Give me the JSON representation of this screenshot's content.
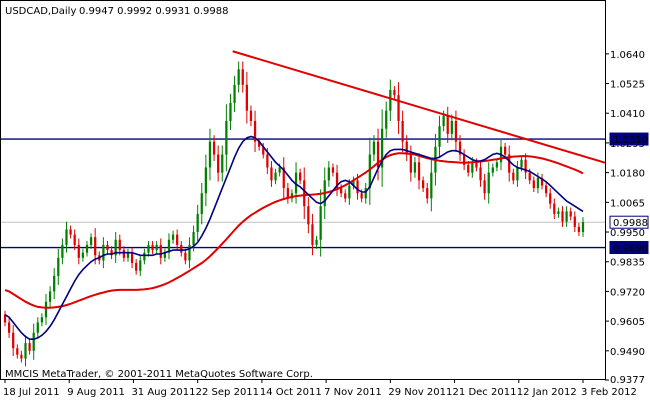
{
  "header": {
    "symbol": "USDCAD,Daily",
    "ohlc": "0.9947 0.9992 0.9931 0.9988"
  },
  "copyright": "MMCIS MetaTrader, © 2001-2011 MetaQuotes Software Corp.",
  "colors": {
    "bull_candle": "#008000",
    "bear_candle": "#e00000",
    "ma_fast": "#000080",
    "ma_slow": "#e00000",
    "trendline": "#e00000",
    "hlines": "#000080",
    "current_price_line": "#c0c0c0"
  },
  "chart_data": {
    "type": "candlestick",
    "title": "USDCAD,Daily",
    "ylim": [
      0.9377,
      1.074
    ],
    "yticks": [
      "1.0640",
      "1.0525",
      "1.0410",
      "1.0295",
      "1.0180",
      "1.0065",
      "0.9950",
      "0.9835",
      "0.9720",
      "0.9605",
      "0.9490",
      "0.9377"
    ],
    "xticks": [
      "18 Jul 2011",
      "9 Aug 2011",
      "31 Aug 2011",
      "22 Sep 2011",
      "14 Oct 2011",
      "7 Nov 2011",
      "29 Nov 2011",
      "21 Dec 2011",
      "12 Jan 2012",
      "3 Feb 2012"
    ],
    "closes": [
      0.96,
      0.956,
      0.95,
      0.9475,
      0.946,
      0.952,
      0.949,
      0.956,
      0.96,
      0.962,
      0.968,
      0.972,
      0.978,
      0.985,
      0.99,
      0.996,
      0.994,
      0.99,
      0.985,
      0.987,
      0.99,
      0.993,
      0.986,
      0.984,
      0.99,
      0.988,
      0.986,
      0.992,
      0.988,
      0.985,
      0.987,
      0.983,
      0.98,
      0.984,
      0.987,
      0.99,
      0.988,
      0.99,
      0.985,
      0.987,
      0.992,
      0.994,
      0.99,
      0.987,
      0.984,
      0.99,
      0.995,
      1.002,
      1.01,
      1.02,
      1.03,
      1.025,
      1.018,
      1.025,
      1.038,
      1.045,
      1.052,
      1.058,
      1.052,
      1.042,
      1.038,
      1.03,
      1.028,
      1.025,
      1.02,
      1.015,
      1.018,
      1.02,
      1.012,
      1.008,
      1.01,
      1.018,
      1.015,
      1.005,
      0.998,
      0.99,
      0.992,
      1.005,
      1.015,
      1.02,
      1.018,
      1.012,
      1.01,
      1.008,
      1.013,
      1.015,
      1.01,
      1.008,
      1.012,
      1.025,
      1.03,
      1.02,
      1.035,
      1.042,
      1.05,
      1.048,
      1.038,
      1.03,
      1.025,
      1.018,
      1.022,
      1.015,
      1.012,
      1.008,
      1.018,
      1.028,
      1.036,
      1.04,
      1.033,
      1.038,
      1.03,
      1.025,
      1.021,
      1.018,
      1.022,
      1.02,
      1.015,
      1.01,
      1.018,
      1.02,
      1.022,
      1.028,
      1.025,
      1.018,
      1.015,
      1.02,
      1.023,
      1.018,
      1.015,
      1.012,
      1.016,
      1.013,
      1.01,
      1.006,
      1.002,
      1.003,
      0.999,
      1.003,
      1.001,
      0.997,
      0.995,
      0.9988
    ],
    "ma_fast": [
      0.963,
      0.962,
      0.96,
      0.958,
      0.956,
      0.9545,
      0.9535,
      0.9535,
      0.954,
      0.955,
      0.9565,
      0.9585,
      0.961,
      0.964,
      0.967,
      0.97,
      0.973,
      0.976,
      0.9785,
      0.9805,
      0.982,
      0.9835,
      0.9845,
      0.985,
      0.986,
      0.9865,
      0.9865,
      0.987,
      0.987,
      0.987,
      0.987,
      0.987,
      0.9865,
      0.986,
      0.986,
      0.986,
      0.986,
      0.9865,
      0.9865,
      0.987,
      0.9875,
      0.988,
      0.988,
      0.988,
      0.988,
      0.9885,
      0.9895,
      0.991,
      0.9935,
      0.9965,
      1.0,
      1.004,
      1.008,
      1.012,
      1.016,
      1.02,
      1.024,
      1.0275,
      1.03,
      1.0315,
      1.032,
      1.0315,
      1.03,
      1.028,
      1.026,
      1.024,
      1.022,
      1.0205,
      1.019,
      1.017,
      1.015,
      1.0135,
      1.0125,
      1.011,
      1.0095,
      1.008,
      1.0065,
      1.006,
      1.007,
      1.009,
      1.011,
      1.013,
      1.0145,
      1.015,
      1.0145,
      1.013,
      1.0115,
      1.0105,
      1.0105,
      1.0125,
      1.016,
      1.0195,
      1.0225,
      1.025,
      1.0265,
      1.027,
      1.027,
      1.027,
      1.0265,
      1.026,
      1.0255,
      1.025,
      1.0245,
      1.024,
      1.0235,
      1.0235,
      1.024,
      1.025,
      1.026,
      1.0265,
      1.0265,
      1.026,
      1.025,
      1.024,
      1.023,
      1.0225,
      1.0225,
      1.023,
      1.024,
      1.025,
      1.0255,
      1.025,
      1.024,
      1.0225,
      1.021,
      1.02,
      1.0195,
      1.019,
      1.0185,
      1.0175,
      1.0165,
      1.0155,
      1.0145,
      1.013,
      1.0115,
      1.01,
      1.0085,
      1.007,
      1.006,
      1.005,
      1.004,
      1.003
    ],
    "ma_slow": [
      0.9725,
      0.972,
      0.971,
      0.97,
      0.969,
      0.968,
      0.9672,
      0.9665,
      0.966,
      0.9658,
      0.9657,
      0.9657,
      0.9658,
      0.966,
      0.9663,
      0.9667,
      0.9672,
      0.9678,
      0.9684,
      0.969,
      0.9696,
      0.9702,
      0.9707,
      0.9712,
      0.9716,
      0.972,
      0.9723,
      0.9725,
      0.9726,
      0.9726,
      0.9726,
      0.9726,
      0.9726,
      0.9727,
      0.9728,
      0.973,
      0.9733,
      0.9737,
      0.9742,
      0.9748,
      0.9755,
      0.9763,
      0.9772,
      0.9781,
      0.979,
      0.98,
      0.981,
      0.982,
      0.983,
      0.9842,
      0.9856,
      0.9872,
      0.9888,
      0.9905,
      0.9922,
      0.994,
      0.9958,
      0.9975,
      0.999,
      1.0003,
      1.0015,
      1.0025,
      1.0035,
      1.0044,
      1.0052,
      1.006,
      1.0067,
      1.0073,
      1.0078,
      1.0082,
      1.0086,
      1.0089,
      1.0091,
      1.0093,
      1.0094,
      1.0095,
      1.0096,
      1.0098,
      1.0101,
      1.0105,
      1.011,
      1.0116,
      1.0123,
      1.0131,
      1.014,
      1.015,
      1.016,
      1.017,
      1.018,
      1.0192,
      1.0205,
      1.0218,
      1.023,
      1.024,
      1.0248,
      1.0252,
      1.0255,
      1.0255,
      1.0254,
      1.0252,
      1.025,
      1.0245,
      1.024,
      1.0236,
      1.0232,
      1.0229,
      1.0226,
      1.0224,
      1.0222,
      1.0221,
      1.022,
      1.0219,
      1.0219,
      1.0219,
      1.022,
      1.0221,
      1.0223,
      1.0225,
      1.0227,
      1.023,
      1.0232,
      1.0235,
      1.0237,
      1.024,
      1.0242,
      1.0243,
      1.0244,
      1.0244,
      1.0243,
      1.0241,
      1.0238,
      1.0235,
      1.0231,
      1.0226,
      1.0221,
      1.0216,
      1.021,
      1.0204,
      1.0198,
      1.0192,
      1.0185,
      1.0177
    ],
    "hlines": [
      1.031,
      0.989
    ],
    "current_price": 0.9988,
    "price_labels": [
      "1.0310",
      "0.9988",
      "0.9890"
    ],
    "trendline": {
      "start": {
        "x": "22 Sep 2011",
        "y": 1.065
      },
      "end": {
        "x": "3 Feb 2012",
        "y": 1.0215
      }
    }
  }
}
